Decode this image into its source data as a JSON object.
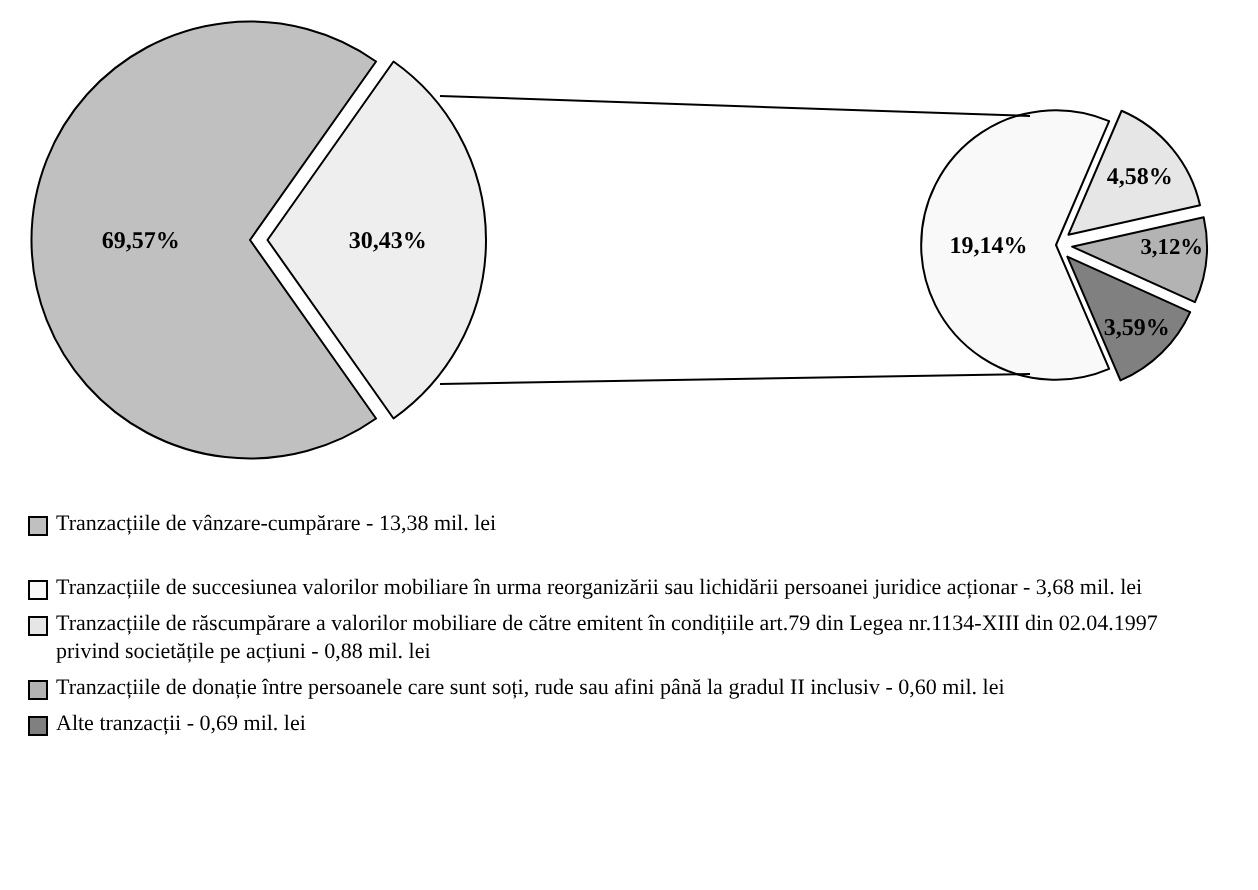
{
  "chart_data": [
    {
      "type": "pie",
      "categories": [
        "Tranzacțiile de vânzare-cumpărare - 13,38 mil. lei",
        null
      ],
      "values": [
        69.57,
        30.43
      ],
      "value_labels": [
        "69,57%",
        "30,43%"
      ],
      "colors": [
        "#c0c0c0",
        "#eeeeee"
      ],
      "legend": "bottom"
    },
    {
      "type": "pie",
      "categories": [
        "Tranzacțiile de succesiunea valorilor mobiliare în urma reorganizării sau lichidării persoanei juridice acționar - 3,68 mil. lei",
        "Tranzacțiile de răscumpărare a valorilor mobiliare de către emitent în condițiile art.79 din Legea nr.1134-XIII din 02.04.1997 privind societățile pe acțiuni - 0,88 mil. lei",
        "Tranzacțiile de donație între persoanele care sunt soți, rude sau afini până la gradul II inclusiv - 0,60 mil. lei",
        "Alte tranzacții - 0,69 mil. lei"
      ],
      "values": [
        19.14,
        4.58,
        3.12,
        3.59
      ],
      "value_labels": [
        "19,14%",
        "4,58%",
        "3,12%",
        "3,59%"
      ],
      "colors": [
        "#f9f9f9",
        "#e6e6e6",
        "#b3b3b3",
        "#808080"
      ],
      "legend": "bottom"
    }
  ]
}
